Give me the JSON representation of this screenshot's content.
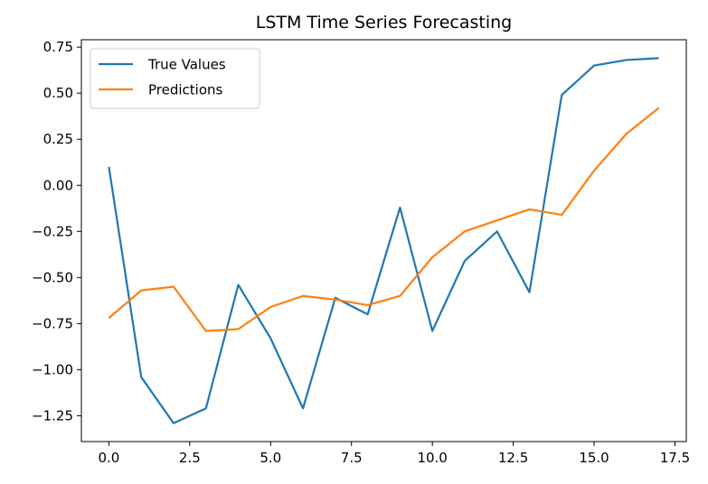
{
  "chart_data": {
    "type": "line",
    "title": "LSTM Time Series Forecasting",
    "xlabel": "",
    "ylabel": "",
    "xlim": [
      -0.85,
      17.85
    ],
    "ylim": [
      -1.39,
      0.79
    ],
    "x_ticks": [
      0.0,
      2.5,
      5.0,
      7.5,
      10.0,
      12.5,
      15.0,
      17.5
    ],
    "x_tick_labels": [
      "0.0",
      "2.5",
      "5.0",
      "7.5",
      "10.0",
      "12.5",
      "15.0",
      "17.5"
    ],
    "y_ticks": [
      0.75,
      0.5,
      0.25,
      0.0,
      -0.25,
      -0.5,
      -0.75,
      -1.0,
      -1.25
    ],
    "y_tick_labels": [
      "0.75",
      "0.50",
      "0.25",
      "0.00",
      "−0.25",
      "−0.50",
      "−0.75",
      "−1.00",
      "−1.25"
    ],
    "grid": false,
    "legend_position": "top-left",
    "x": [
      0,
      1,
      2,
      3,
      4,
      5,
      6,
      7,
      8,
      9,
      10,
      11,
      12,
      13,
      14,
      15,
      16,
      17
    ],
    "series": [
      {
        "name": "True Values",
        "color": "#1f77b4",
        "values": [
          0.1,
          -1.04,
          -1.29,
          -1.21,
          -0.54,
          -0.83,
          -1.21,
          -0.61,
          -0.7,
          -0.12,
          -0.79,
          -0.41,
          -0.25,
          -0.58,
          0.49,
          0.65,
          0.68,
          0.69
        ]
      },
      {
        "name": "Predictions",
        "color": "#ff7f0e",
        "values": [
          -0.72,
          -0.57,
          -0.55,
          -0.79,
          -0.78,
          -0.66,
          -0.6,
          -0.62,
          -0.65,
          -0.6,
          -0.39,
          -0.25,
          -0.19,
          -0.13,
          -0.16,
          0.08,
          0.28,
          0.42
        ]
      }
    ]
  }
}
